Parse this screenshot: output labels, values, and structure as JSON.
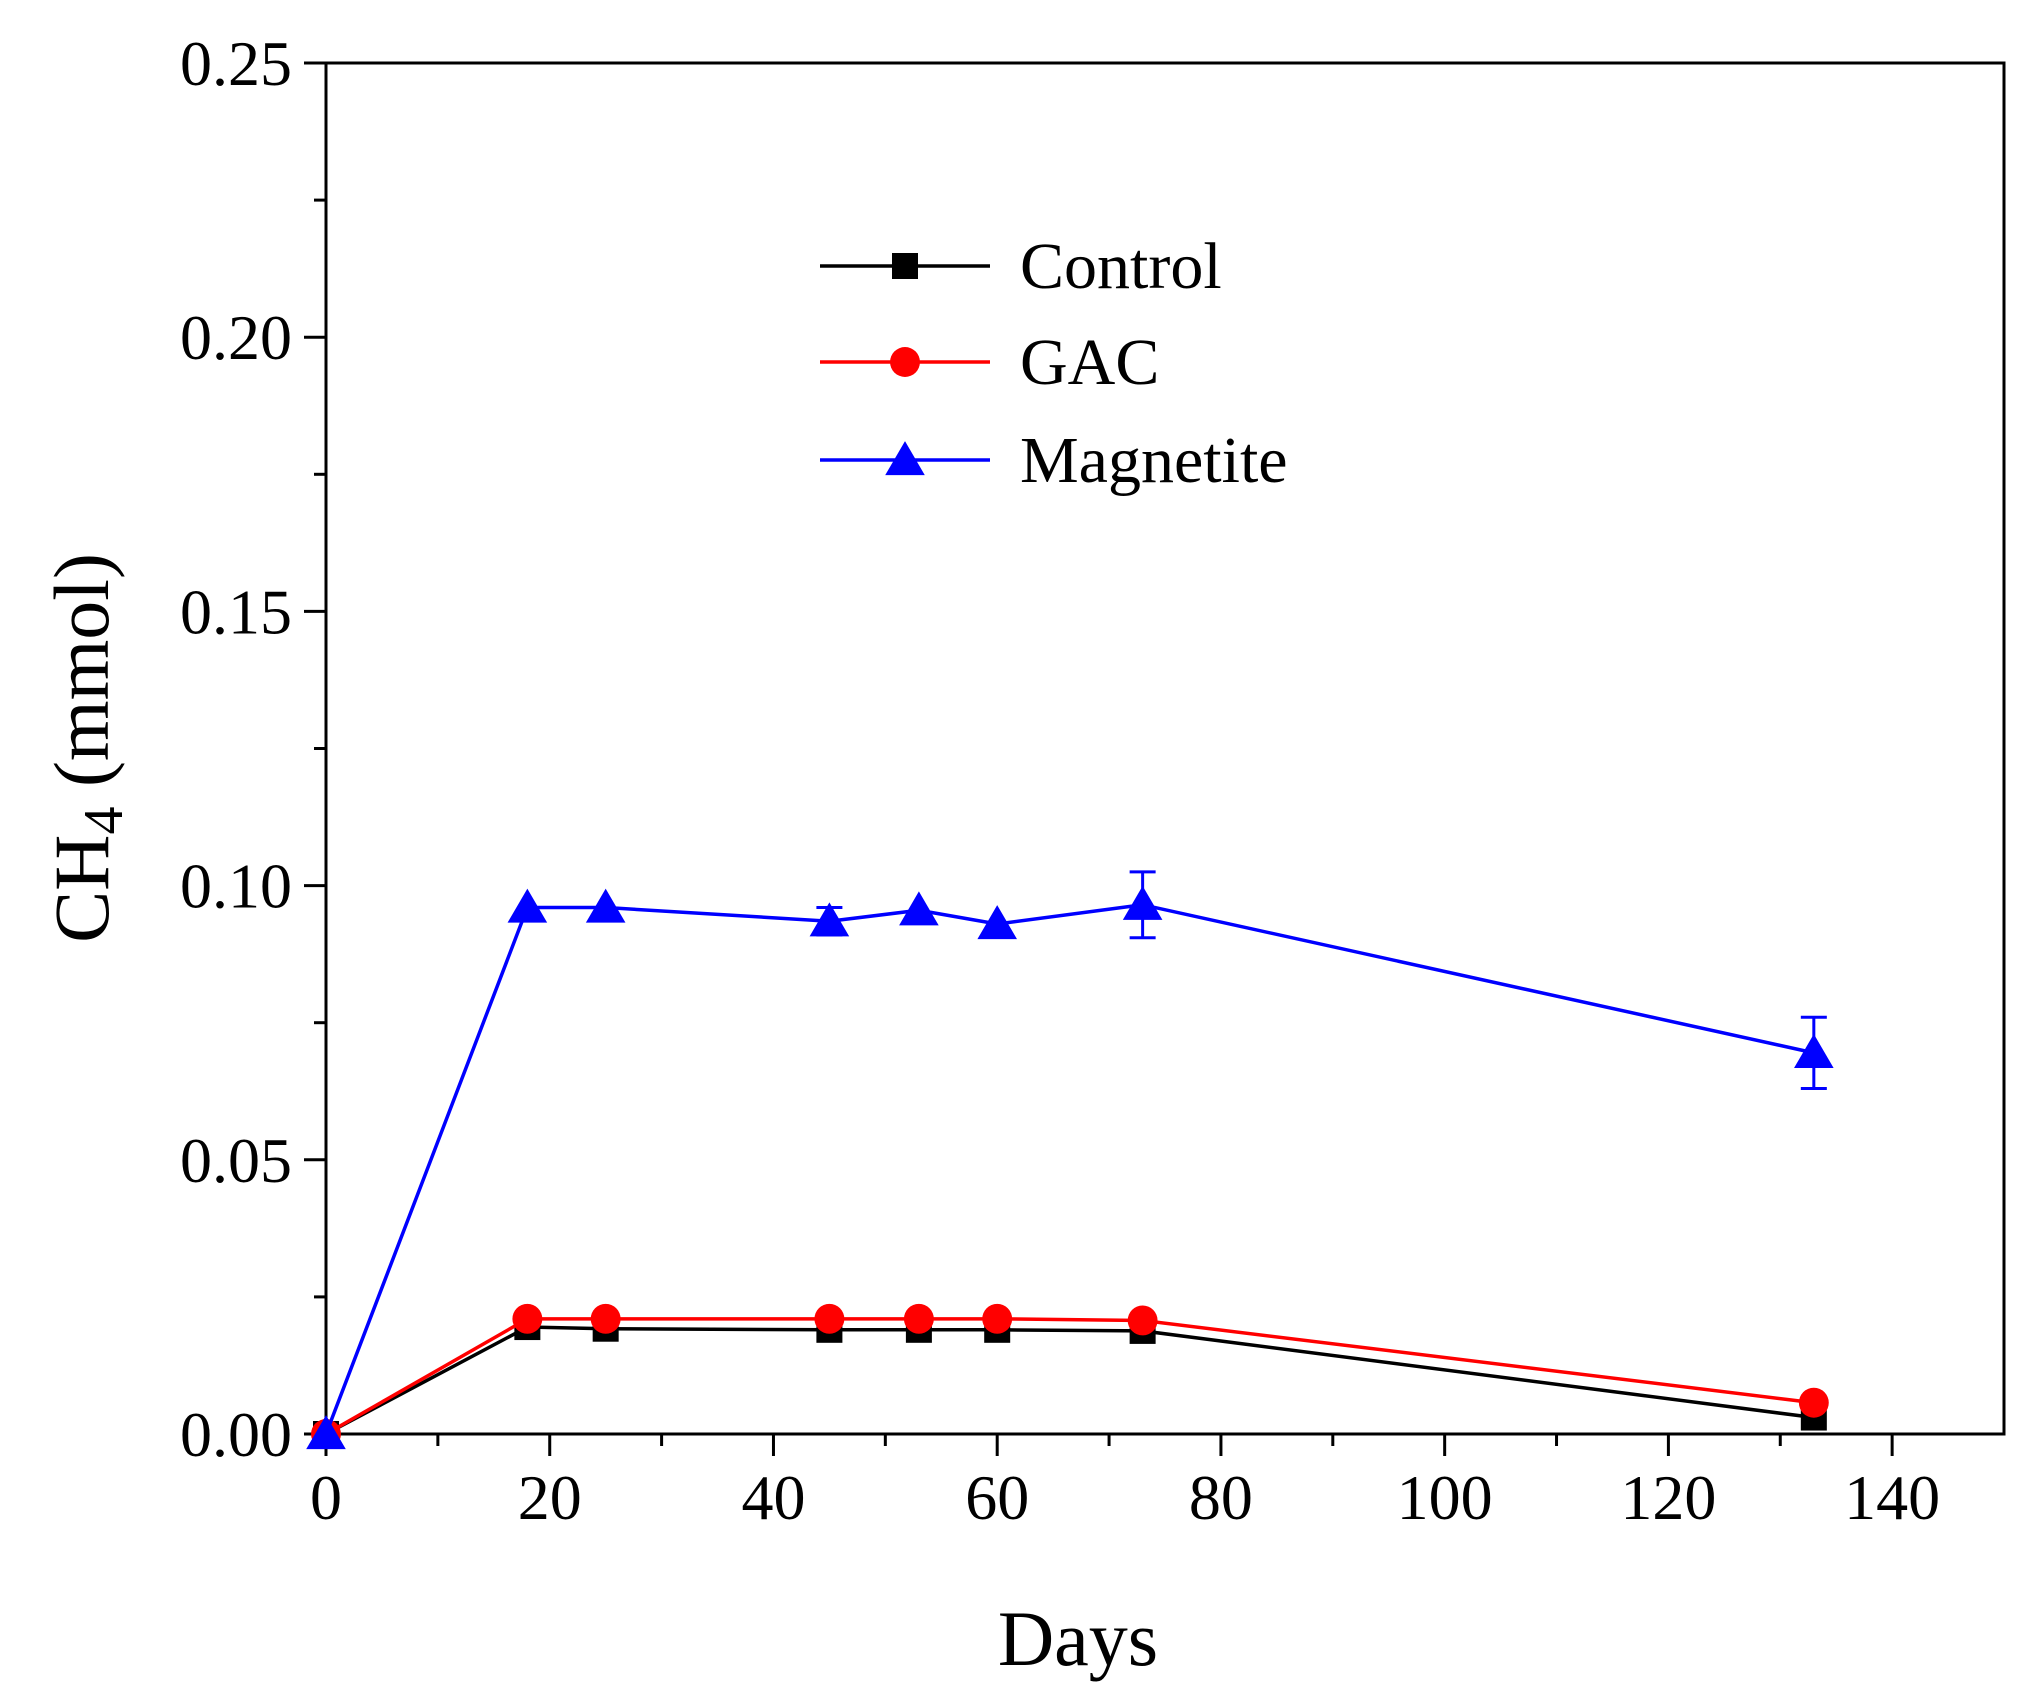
{
  "chart_data": {
    "type": "line",
    "title": "",
    "xlabel": "Days",
    "ylabel": {
      "main": "CH",
      "subscript": "4",
      "unit": " (mmol)"
    },
    "xlim": [
      0,
      150
    ],
    "ylim": [
      0,
      0.25
    ],
    "xticks": [
      0,
      20,
      40,
      60,
      80,
      100,
      120,
      140
    ],
    "xtick_labels": [
      "0",
      "20",
      "40",
      "60",
      "80",
      "100",
      "120",
      "140"
    ],
    "yticks": [
      0,
      0.05,
      0.1,
      0.15,
      0.2,
      0.25
    ],
    "ytick_labels": [
      "0.00",
      "0.05",
      "0.10",
      "0.15",
      "0.20",
      "0.25"
    ],
    "grid": false,
    "legend_position": "top-center",
    "series": [
      {
        "name": "Control",
        "color": "#000000",
        "marker": "square",
        "x": [
          0,
          18,
          25,
          45,
          53,
          60,
          73,
          133
        ],
        "y": [
          0,
          0.0195,
          0.0192,
          0.019,
          0.019,
          0.019,
          0.0188,
          0.003
        ],
        "err": [
          0,
          0,
          0,
          0,
          0,
          0,
          0,
          0
        ]
      },
      {
        "name": "GAC",
        "color": "#ff0000",
        "marker": "circle",
        "x": [
          0,
          18,
          25,
          45,
          53,
          60,
          73,
          133
        ],
        "y": [
          0,
          0.021,
          0.021,
          0.021,
          0.021,
          0.021,
          0.0207,
          0.0057
        ],
        "err": [
          0,
          0,
          0,
          0,
          0,
          0,
          0,
          0
        ]
      },
      {
        "name": "Magnetite",
        "color": "#0000ff",
        "marker": "triangle",
        "x": [
          0,
          18,
          25,
          45,
          53,
          60,
          73,
          133
        ],
        "y": [
          0,
          0.096,
          0.096,
          0.0935,
          0.0955,
          0.093,
          0.0965,
          0.0695
        ],
        "err": [
          0,
          0,
          0,
          0.0025,
          0,
          0,
          0.006,
          0.0065
        ]
      }
    ]
  }
}
